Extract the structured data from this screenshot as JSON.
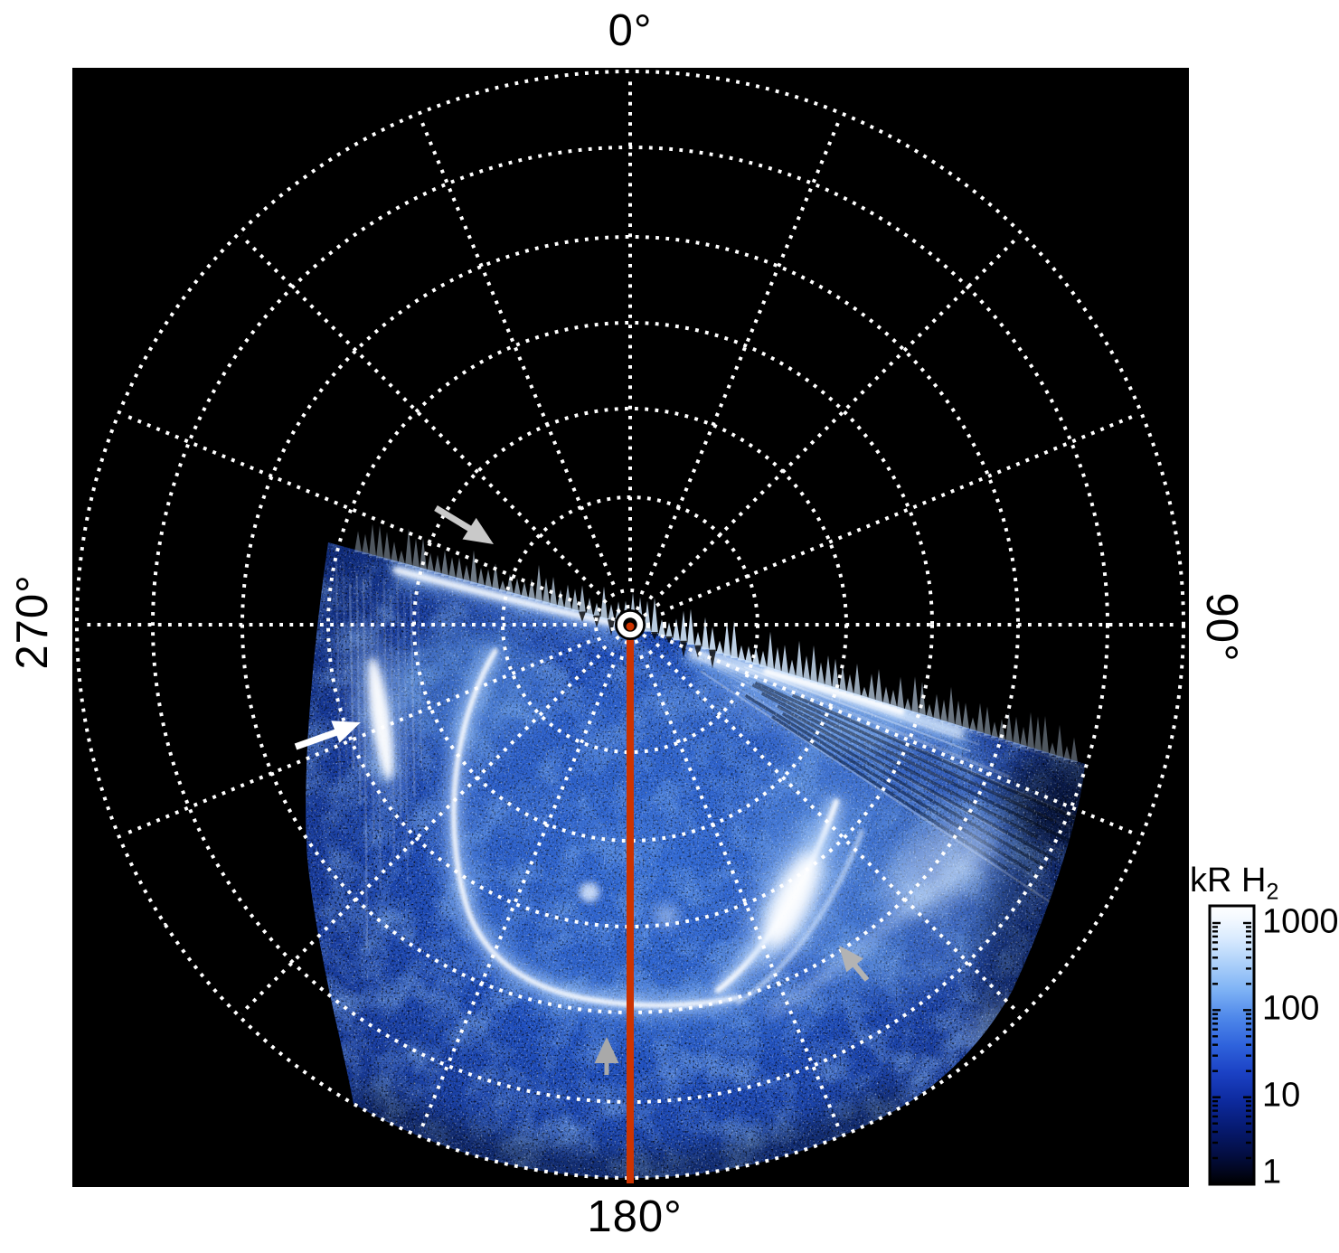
{
  "figure": {
    "background": "#ffffff",
    "plot_background": "#000000"
  },
  "azimuth": {
    "top": "0°",
    "right": "90°",
    "bottom": "180°",
    "left": "270°"
  },
  "colorbar": {
    "title_main": "kR H",
    "title_sub": "2",
    "tick_labels": [
      "1000",
      "100",
      "10",
      "1"
    ],
    "major_ticks": [
      1000,
      100,
      10,
      1
    ],
    "minor_ticks": [
      900,
      800,
      700,
      600,
      500,
      400,
      300,
      200,
      90,
      80,
      70,
      60,
      50,
      40,
      30,
      20,
      9,
      8,
      7,
      6,
      5,
      4,
      3,
      2
    ],
    "scale": "log",
    "min": 1,
    "max": 1000,
    "gradient": [
      "#ffffff",
      "#f2f8ff",
      "#d8eafe",
      "#b0d2fa",
      "#7fb3f5",
      "#4f88ea",
      "#2f63dc",
      "#1b41c4",
      "#0d2a9e",
      "#061a70",
      "#030d3f",
      "#000000"
    ]
  },
  "chart_data": {
    "type": "heatmap",
    "projection": "polar",
    "description": "Ultraviolet auroral emission image on a polar grid; observed swath covers the lower half of the projection with a bright main auroral oval arc, a bright poleward arc and multiple bright arcs on the right side over a noisy blue background.",
    "azimuth_tick_labels": [
      "0°",
      "90°",
      "180°",
      "270°"
    ],
    "azimuth_ticks_deg": [
      0,
      90,
      180,
      270
    ],
    "grid": {
      "style": "dotted",
      "color": "#ffffff",
      "spoke_interval_deg": 22.5,
      "spoke_count": 16,
      "ring_count": 8
    },
    "color_scale": {
      "label": "kR H2",
      "type": "log",
      "range": [
        1,
        1000
      ],
      "ticks": [
        1000,
        100,
        10,
        1
      ],
      "low_color": "#000000",
      "high_color": "#ffffff"
    },
    "legend_position": "right",
    "visible_features": [
      "bright main oval arc on left (dusk) side",
      "bright narrow poleward arc indicated by white arrow",
      "multiple bright parallel arcs on lower-right (dawn) side",
      "diffuse inner emission patches",
      "red meridian line along 180° azimuth"
    ]
  },
  "annotations": {
    "meridian_line": {
      "azimuth_deg": 180,
      "color": "#cc3300"
    },
    "pole_marker": {
      "shape": "white-ring",
      "color": "#ffffff"
    },
    "arrows": [
      {
        "id": "upper-gray-arrow",
        "color": "#c9c9c9",
        "direction": "down-right"
      },
      {
        "id": "left-white-arrow",
        "color": "#ffffff",
        "direction": "up-right"
      },
      {
        "id": "right-gray-arrow",
        "color": "#b3b3b3",
        "direction": "up-left"
      },
      {
        "id": "bottom-gray-arrow",
        "color": "#a9a9a9",
        "direction": "up"
      }
    ]
  }
}
